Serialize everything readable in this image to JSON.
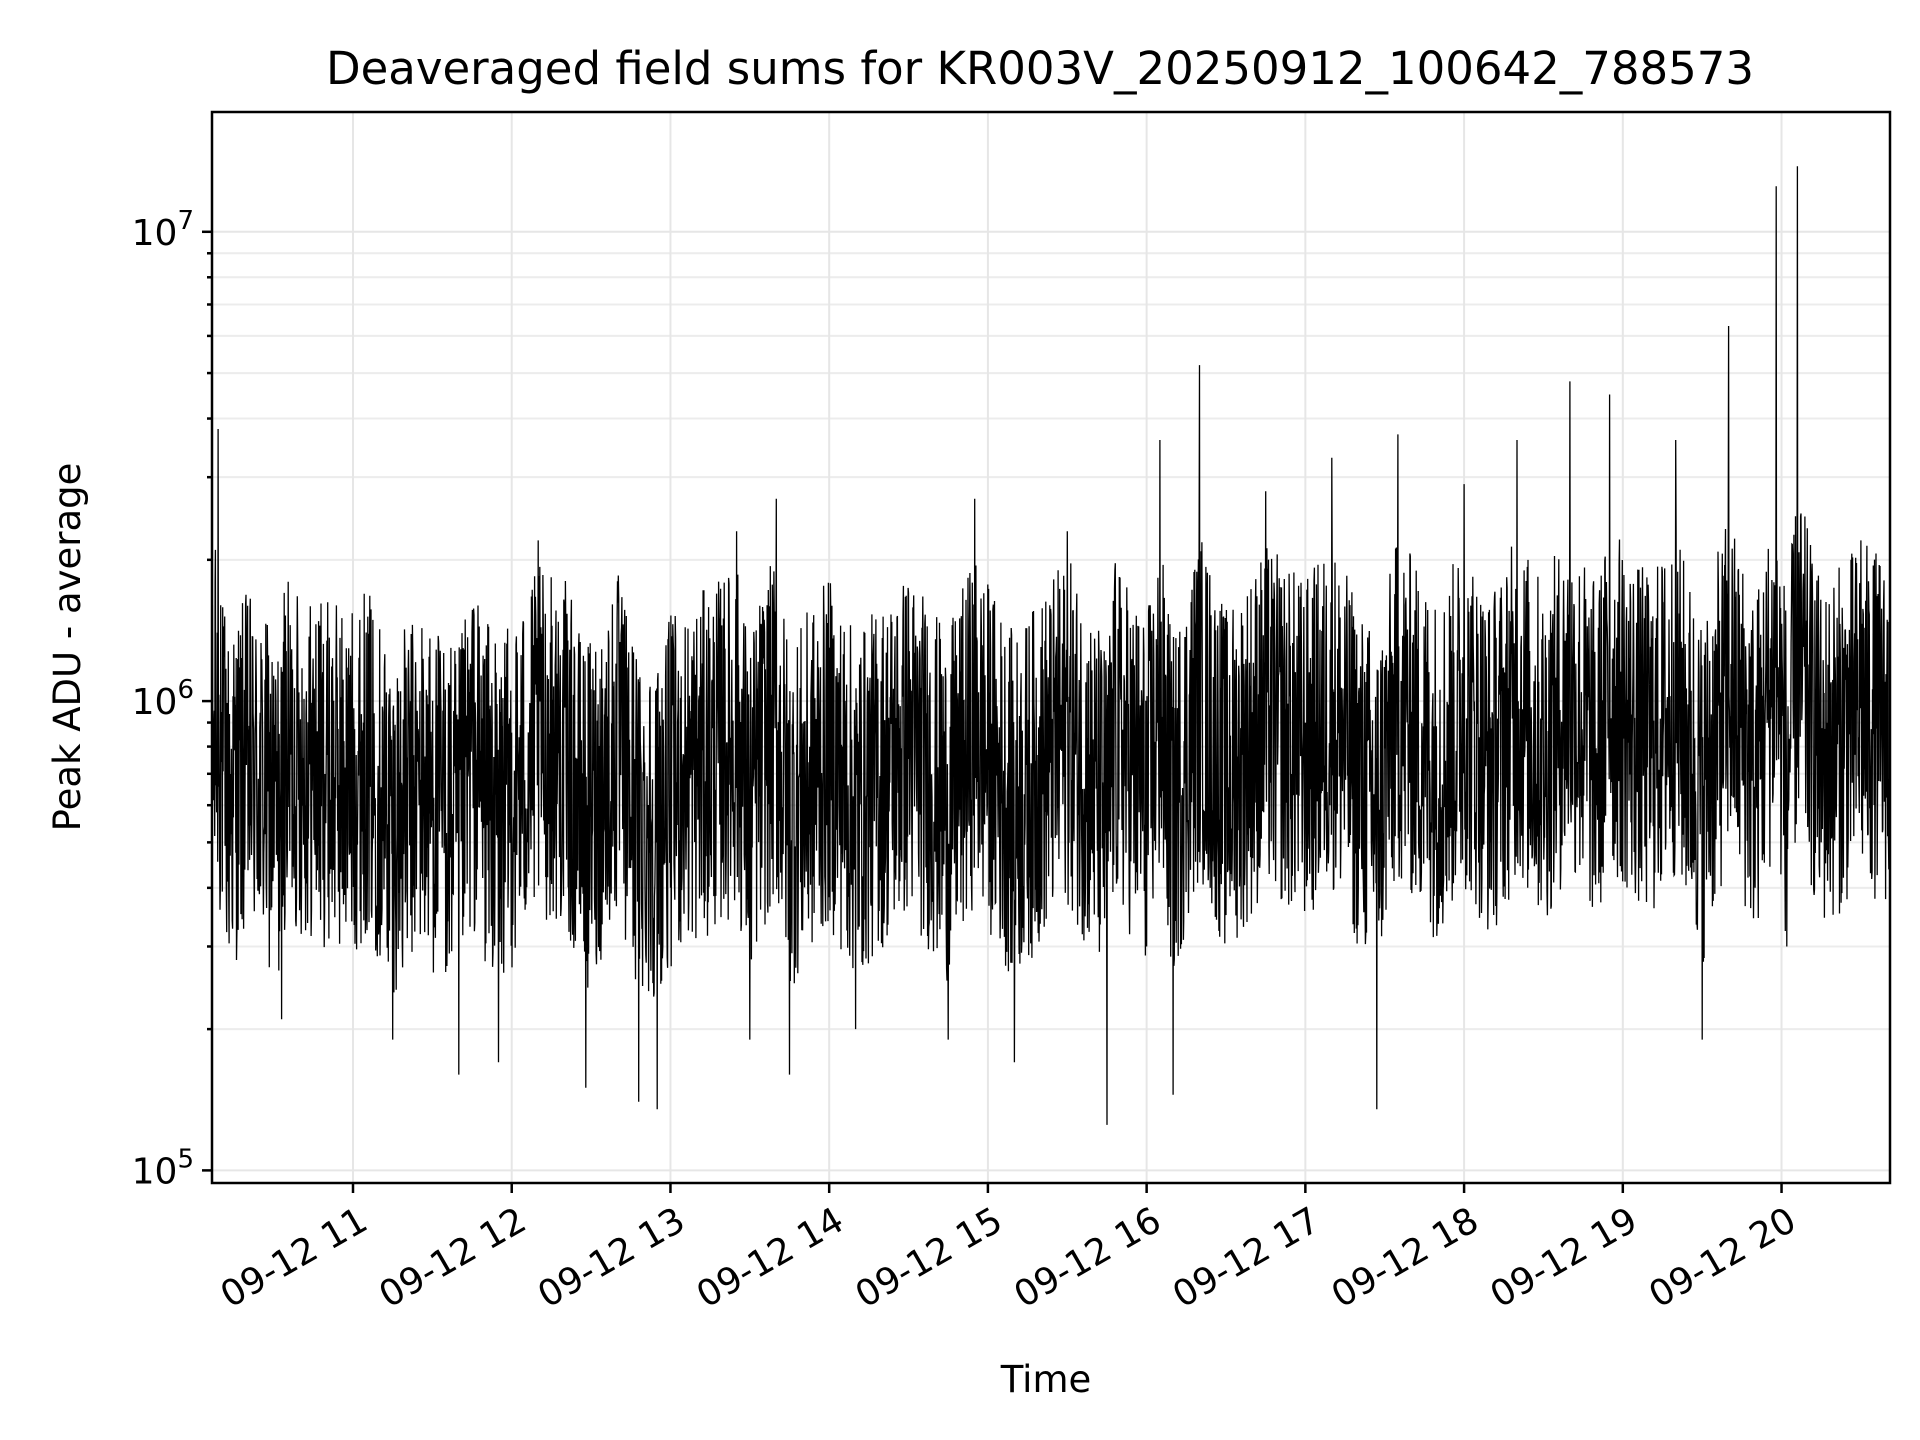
{
  "chart_data": {
    "type": "line",
    "title": "Deaveraged field sums for KR003V_20250912_100642_788573",
    "xlabel": "Time",
    "ylabel": "Peak ADU - average",
    "yscale": "log",
    "ylim": [
      94000,
      18000000
    ],
    "xlim": [
      "2025-09-12 10:06:42",
      "2025-09-12 20:41:00"
    ],
    "grid": true,
    "legend": "none",
    "line_color": "#000000",
    "x_ticks": [
      {
        "time": "2025-09-12 11:00",
        "label": "09-12 11"
      },
      {
        "time": "2025-09-12 12:00",
        "label": "09-12 12"
      },
      {
        "time": "2025-09-12 13:00",
        "label": "09-12 13"
      },
      {
        "time": "2025-09-12 14:00",
        "label": "09-12 14"
      },
      {
        "time": "2025-09-12 15:00",
        "label": "09-12 15"
      },
      {
        "time": "2025-09-12 16:00",
        "label": "09-12 16"
      },
      {
        "time": "2025-09-12 17:00",
        "label": "09-12 17"
      },
      {
        "time": "2025-09-12 18:00",
        "label": "09-12 18"
      },
      {
        "time": "2025-09-12 19:00",
        "label": "09-12 19"
      },
      {
        "time": "2025-09-12 20:00",
        "label": "09-12 20"
      }
    ],
    "y_ticks": [
      {
        "value": 100000,
        "base": "10",
        "exp": "5"
      },
      {
        "value": 1000000,
        "base": "10",
        "exp": "6"
      },
      {
        "value": 10000000,
        "base": "10",
        "exp": "7"
      }
    ],
    "series": [
      {
        "points": [
          [
            "2025-09-12 10:06:42",
            1400000
          ],
          [
            "2025-09-12 10:08",
            2100000
          ],
          [
            "2025-09-12 10:09",
            3800000
          ],
          [
            "2025-09-12 10:10",
            1600000
          ],
          [
            "2025-09-12 10:13",
            400000
          ],
          [
            "2025-09-12 10:20",
            1300000
          ],
          [
            "2025-09-12 10:33",
            210000
          ],
          [
            "2025-09-12 10:34",
            1700000
          ],
          [
            "2025-09-12 10:50",
            900000
          ],
          [
            "2025-09-12 11:00",
            700000
          ],
          [
            "2025-09-12 11:05",
            1400000
          ],
          [
            "2025-09-12 11:15",
            190000
          ],
          [
            "2025-09-12 11:25",
            600000
          ],
          [
            "2025-09-12 11:40",
            160000
          ],
          [
            "2025-09-12 11:45",
            1400000
          ],
          [
            "2025-09-12 11:55",
            170000
          ],
          [
            "2025-09-12 12:10",
            2200000
          ],
          [
            "2025-09-12 12:20",
            1500000
          ],
          [
            "2025-09-12 12:28",
            150000
          ],
          [
            "2025-09-12 12:40",
            1800000
          ],
          [
            "2025-09-12 12:48",
            140000
          ],
          [
            "2025-09-12 12:55",
            135000
          ],
          [
            "2025-09-12 13:00",
            400000
          ],
          [
            "2025-09-12 13:20",
            1500000
          ],
          [
            "2025-09-12 13:25",
            2300000
          ],
          [
            "2025-09-12 13:30",
            190000
          ],
          [
            "2025-09-12 13:35",
            1200000
          ],
          [
            "2025-09-12 13:40",
            2700000
          ],
          [
            "2025-09-12 13:45",
            160000
          ],
          [
            "2025-09-12 14:00",
            1300000
          ],
          [
            "2025-09-12 14:10",
            200000
          ],
          [
            "2025-09-12 14:30",
            1700000
          ],
          [
            "2025-09-12 14:45",
            190000
          ],
          [
            "2025-09-12 14:55",
            2700000
          ],
          [
            "2025-09-12 15:10",
            170000
          ],
          [
            "2025-09-12 15:30",
            2300000
          ],
          [
            "2025-09-12 15:45",
            125000
          ],
          [
            "2025-09-12 15:48",
            1900000
          ],
          [
            "2025-09-12 16:00",
            300000
          ],
          [
            "2025-09-12 16:05",
            3600000
          ],
          [
            "2025-09-12 16:10",
            145000
          ],
          [
            "2025-09-12 16:20",
            5200000
          ],
          [
            "2025-09-12 16:30",
            350000
          ],
          [
            "2025-09-12 16:45",
            2800000
          ],
          [
            "2025-09-12 17:00",
            900000
          ],
          [
            "2025-09-12 17:10",
            3300000
          ],
          [
            "2025-09-12 17:20",
            400000
          ],
          [
            "2025-09-12 17:27",
            135000
          ],
          [
            "2025-09-12 17:35",
            3700000
          ],
          [
            "2025-09-12 17:50",
            500000
          ],
          [
            "2025-09-12 18:00",
            2900000
          ],
          [
            "2025-09-12 18:10",
            500000
          ],
          [
            "2025-09-12 18:20",
            3600000
          ],
          [
            "2025-09-12 18:30",
            700000
          ],
          [
            "2025-09-12 18:40",
            4800000
          ],
          [
            "2025-09-12 18:50",
            600000
          ],
          [
            "2025-09-12 18:55",
            4500000
          ],
          [
            "2025-09-12 19:10",
            800000
          ],
          [
            "2025-09-12 19:20",
            3600000
          ],
          [
            "2025-09-12 19:30",
            190000
          ],
          [
            "2025-09-12 19:40",
            6300000
          ],
          [
            "2025-09-12 19:50",
            400000
          ],
          [
            "2025-09-12 19:58",
            12500000
          ],
          [
            "2025-09-12 20:02",
            300000
          ],
          [
            "2025-09-12 20:06",
            13800000
          ],
          [
            "2025-09-12 20:15",
            500000
          ],
          [
            "2025-09-12 20:30",
            2200000
          ],
          [
            "2025-09-12 20:41",
            1100000
          ]
        ]
      }
    ]
  }
}
